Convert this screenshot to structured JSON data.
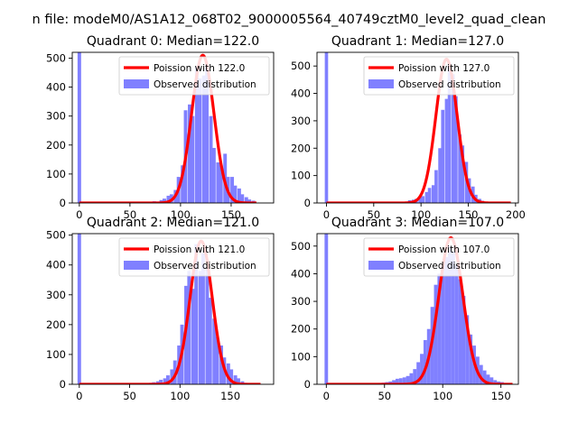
{
  "figure": {
    "suptitle": "n file: modeM0/AS1A12_068T02_9000005564_40749cztM0_level2_quad_clean"
  },
  "colors": {
    "hist": "#8080ff",
    "poisson": "#ff0000",
    "axes": "#000000",
    "background": "#ffffff"
  },
  "chart_data": [
    {
      "type": "bar",
      "title": "Quadrant 0: Median=122.0",
      "xlim": [
        -7,
        192
      ],
      "ylim": [
        0,
        520
      ],
      "xticks": [
        0,
        50,
        100,
        150
      ],
      "yticks": [
        0,
        100,
        200,
        300,
        400,
        500
      ],
      "legend_position": "top-right",
      "series": [
        {
          "name": "Poission with 122.0",
          "kind": "line",
          "lambda": 122.0,
          "x_range": [
            0,
            175
          ],
          "peak": 510
        },
        {
          "name": "Observed distribution",
          "kind": "histogram",
          "bin_width": 3.5,
          "values": [
            [
              0,
              520
            ],
            [
              63,
              2
            ],
            [
              67,
              3
            ],
            [
              70,
              4
            ],
            [
              74,
              6
            ],
            [
              77,
              5
            ],
            [
              81,
              10
            ],
            [
              84,
              15
            ],
            [
              88,
              25
            ],
            [
              91,
              30
            ],
            [
              95,
              45
            ],
            [
              98,
              90
            ],
            [
              102,
              130
            ],
            [
              105,
              320
            ],
            [
              109,
              340
            ],
            [
              112,
              300
            ],
            [
              116,
              470
            ],
            [
              119,
              430
            ],
            [
              123,
              440
            ],
            [
              126,
              480
            ],
            [
              130,
              300
            ],
            [
              133,
              190
            ],
            [
              137,
              140
            ],
            [
              140,
              130
            ],
            [
              144,
              170
            ],
            [
              147,
              90
            ],
            [
              151,
              90
            ],
            [
              154,
              60
            ],
            [
              158,
              50
            ],
            [
              161,
              30
            ],
            [
              165,
              20
            ],
            [
              168,
              12
            ],
            [
              172,
              8
            ]
          ]
        }
      ]
    },
    {
      "type": "bar",
      "title": "Quadrant 1: Median=127.0",
      "xlim": [
        -10,
        203
      ],
      "ylim": [
        0,
        550
      ],
      "xticks": [
        0,
        50,
        100,
        150,
        200
      ],
      "yticks": [
        0,
        100,
        200,
        300,
        400,
        500
      ],
      "legend_position": "top-right",
      "series": [
        {
          "name": "Poission with 127.0",
          "kind": "line",
          "lambda": 127.0,
          "x_range": [
            0,
            195
          ],
          "peak": 525
        },
        {
          "name": "Observed distribution",
          "kind": "histogram",
          "bin_width": 3.5,
          "values": [
            [
              0,
              550
            ],
            [
              85,
              5
            ],
            [
              88,
              10
            ],
            [
              92,
              12
            ],
            [
              95,
              15
            ],
            [
              99,
              20
            ],
            [
              102,
              25
            ],
            [
              106,
              40
            ],
            [
              109,
              55
            ],
            [
              113,
              65
            ],
            [
              116,
              120
            ],
            [
              120,
              200
            ],
            [
              123,
              340
            ],
            [
              127,
              380
            ],
            [
              130,
              510
            ],
            [
              134,
              470
            ],
            [
              137,
              390
            ],
            [
              141,
              250
            ],
            [
              144,
              210
            ],
            [
              148,
              150
            ],
            [
              151,
              90
            ],
            [
              155,
              60
            ],
            [
              158,
              30
            ],
            [
              162,
              15
            ],
            [
              165,
              8
            ],
            [
              169,
              4
            ]
          ]
        }
      ]
    },
    {
      "type": "bar",
      "title": "Quadrant 2: Median=121.0",
      "xlim": [
        -7,
        193
      ],
      "ylim": [
        0,
        505
      ],
      "xticks": [
        0,
        50,
        100,
        150
      ],
      "yticks": [
        0,
        100,
        200,
        300,
        400,
        500
      ],
      "legend_position": "top-right",
      "series": [
        {
          "name": "Poission with 121.0",
          "kind": "line",
          "lambda": 121.0,
          "x_range": [
            0,
            180
          ],
          "peak": 480
        },
        {
          "name": "Observed distribution",
          "kind": "histogram",
          "bin_width": 3.5,
          "values": [
            [
              0,
              505
            ],
            [
              60,
              2
            ],
            [
              64,
              3
            ],
            [
              67,
              4
            ],
            [
              71,
              5
            ],
            [
              74,
              7
            ],
            [
              78,
              10
            ],
            [
              81,
              15
            ],
            [
              85,
              20
            ],
            [
              88,
              30
            ],
            [
              92,
              50
            ],
            [
              95,
              80
            ],
            [
              99,
              130
            ],
            [
              102,
              200
            ],
            [
              106,
              330
            ],
            [
              109,
              380
            ],
            [
              113,
              320
            ],
            [
              116,
              470
            ],
            [
              120,
              380
            ],
            [
              123,
              440
            ],
            [
              127,
              390
            ],
            [
              130,
              290
            ],
            [
              134,
              220
            ],
            [
              137,
              160
            ],
            [
              141,
              130
            ],
            [
              144,
              90
            ],
            [
              148,
              70
            ],
            [
              151,
              50
            ],
            [
              155,
              30
            ],
            [
              158,
              20
            ],
            [
              162,
              10
            ],
            [
              165,
              5
            ],
            [
              169,
              3
            ]
          ]
        }
      ]
    },
    {
      "type": "bar",
      "title": "Quadrant 3: Median=107.0",
      "xlim": [
        -8,
        165
      ],
      "ylim": [
        0,
        545
      ],
      "xticks": [
        0,
        50,
        100,
        150
      ],
      "yticks": [
        0,
        100,
        200,
        300,
        400,
        500
      ],
      "legend_position": "top-right",
      "series": [
        {
          "name": "Poission with 107.0",
          "kind": "line",
          "lambda": 107.0,
          "x_range": [
            0,
            160
          ],
          "peak": 530
        },
        {
          "name": "Observed distribution",
          "kind": "histogram",
          "bin_width": 3.0,
          "values": [
            [
              0,
              545
            ],
            [
              40,
              3
            ],
            [
              43,
              4
            ],
            [
              46,
              5
            ],
            [
              49,
              6
            ],
            [
              52,
              8
            ],
            [
              55,
              10
            ],
            [
              58,
              15
            ],
            [
              61,
              20
            ],
            [
              64,
              22
            ],
            [
              67,
              25
            ],
            [
              70,
              30
            ],
            [
              73,
              40
            ],
            [
              76,
              55
            ],
            [
              79,
              80
            ],
            [
              82,
              110
            ],
            [
              85,
              160
            ],
            [
              88,
              200
            ],
            [
              91,
              280
            ],
            [
              94,
              360
            ],
            [
              97,
              400
            ],
            [
              100,
              430
            ],
            [
              103,
              460
            ],
            [
              106,
              500
            ],
            [
              109,
              480
            ],
            [
              112,
              430
            ],
            [
              115,
              380
            ],
            [
              118,
              320
            ],
            [
              121,
              250
            ],
            [
              124,
              180
            ],
            [
              127,
              140
            ],
            [
              130,
              100
            ],
            [
              133,
              70
            ],
            [
              136,
              50
            ],
            [
              139,
              35
            ],
            [
              142,
              25
            ],
            [
              145,
              15
            ],
            [
              148,
              10
            ],
            [
              151,
              8
            ],
            [
              154,
              5
            ]
          ]
        }
      ]
    }
  ]
}
